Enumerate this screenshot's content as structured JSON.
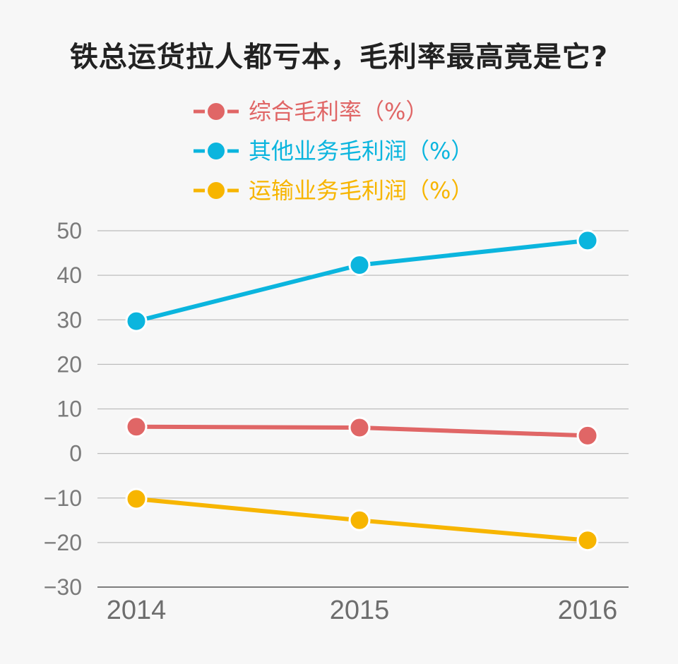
{
  "chart_data": {
    "type": "line",
    "title": "铁总运货拉人都亏本，毛利率最高竟是它?",
    "xlabel": "",
    "ylabel": "",
    "categories": [
      "2014",
      "2015",
      "2016"
    ],
    "ylim": [
      -30,
      50
    ],
    "yticks": [
      50,
      40,
      30,
      20,
      10,
      0,
      -10,
      -20,
      -30
    ],
    "ytick_labels": [
      "50",
      "40",
      "30",
      "20",
      "10",
      "0",
      "−10",
      "−20",
      "−30"
    ],
    "grid": true,
    "legend_position": "top",
    "series": [
      {
        "name": "综合毛利率（%）",
        "color": "#e06666",
        "values": [
          6.0,
          5.8,
          4.0
        ]
      },
      {
        "name": "其他业务毛利润（%）",
        "color": "#0bb5de",
        "values": [
          29.7,
          42.3,
          47.8
        ]
      },
      {
        "name": "运输业务毛利润（%）",
        "color": "#f7b500",
        "values": [
          -10.2,
          -15.0,
          -19.5
        ]
      }
    ]
  }
}
